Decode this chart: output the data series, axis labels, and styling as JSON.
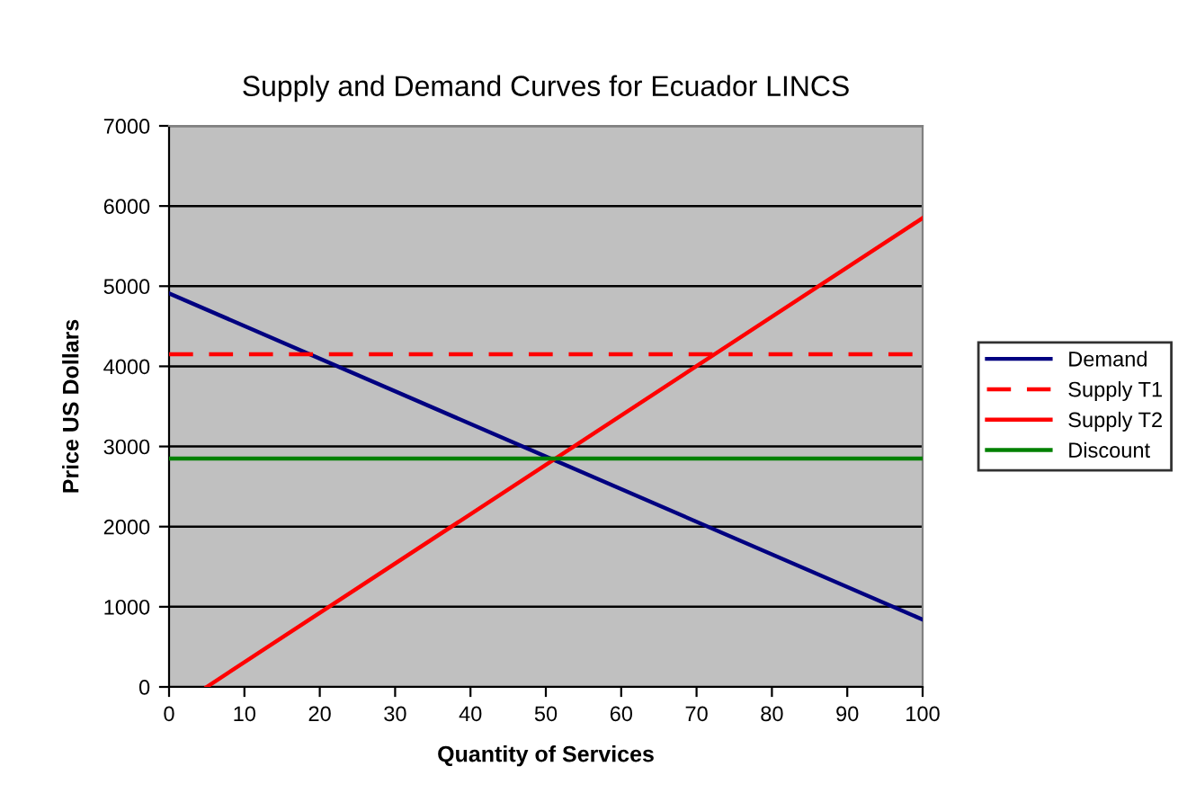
{
  "chart_data": {
    "type": "line",
    "title": "Supply and Demand Curves for Ecuador LINCS",
    "xlabel": "Quantity of Services",
    "ylabel": "Price US Dollars",
    "x": [
      0,
      100
    ],
    "series": [
      {
        "name": "Demand",
        "color": "#000080",
        "values": [
          4910,
          840
        ],
        "line_style": "solid"
      },
      {
        "name": "Supply T1",
        "color": "#ff0000",
        "values": [
          4150,
          4150
        ],
        "line_style": "dashed"
      },
      {
        "name": "Supply T2",
        "color": "#ff0000",
        "x": [
          5,
          100
        ],
        "values": [
          0,
          5850
        ],
        "line_style": "solid"
      },
      {
        "name": "Discount",
        "color": "#008000",
        "values": [
          2850,
          2850
        ],
        "line_style": "solid"
      }
    ],
    "xlim": [
      0,
      100
    ],
    "xticks": [
      0,
      10,
      20,
      30,
      40,
      50,
      60,
      70,
      80,
      90,
      100
    ],
    "ylim": [
      0,
      7000
    ],
    "yticks": [
      0,
      1000,
      2000,
      3000,
      4000,
      5000,
      6000,
      7000
    ],
    "grid": "y",
    "legend": "right",
    "marker": "none"
  }
}
